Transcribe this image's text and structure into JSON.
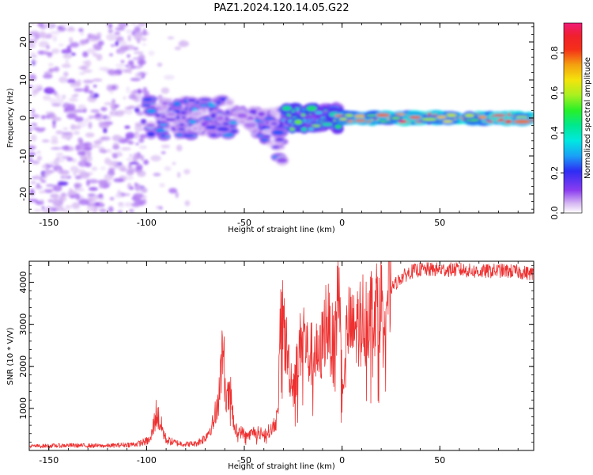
{
  "title": "PAZ1.2024.120.14.05.G22",
  "chart_data": [
    {
      "type": "heatmap",
      "xlabel": "Height of straight line (km)",
      "ylabel": "Frequency (Hz)",
      "xlim": [
        -160,
        98
      ],
      "ylim": [
        -25,
        25
      ],
      "xticks": [
        -150,
        -100,
        -50,
        0,
        50
      ],
      "yticks": [
        -20,
        -10,
        0,
        10,
        20
      ],
      "colorbar": {
        "label": "Normalized spectral amplitude",
        "range": [
          0,
          0.95
        ],
        "ticks": [
          0.0,
          0.2,
          0.4,
          0.6,
          0.8
        ],
        "colormap": "gist_ncar-like (white, violet, blue, cyan, green, yellow, orange, red, pink)"
      },
      "features": [
        {
          "x_range": [
            -160,
            -100
          ],
          "freq_range": [
            -25,
            25
          ],
          "amplitude": [
            0.02,
            0.1
          ],
          "note": "diffuse noise"
        },
        {
          "x_range": [
            -100,
            -55
          ],
          "freq_range": [
            -5,
            5
          ],
          "amplitude": [
            0.05,
            0.3
          ]
        },
        {
          "x_range": [
            -55,
            -30
          ],
          "freq_range": [
            -15,
            4
          ],
          "amplitude": [
            0.05,
            0.3
          ]
        },
        {
          "x_range": [
            -30,
            0
          ],
          "freq_range": [
            -3,
            3
          ],
          "amplitude": [
            0.2,
            0.6
          ]
        },
        {
          "x_range": [
            0,
            98
          ],
          "freq_range": [
            -1,
            1
          ],
          "amplitude": [
            0.5,
            0.95
          ],
          "note": "narrow carrier line near 0 Hz"
        }
      ]
    },
    {
      "type": "line",
      "xlabel": "Height of straight line (km)",
      "ylabel": "SNR (10 * V/V)",
      "xlim": [
        -160,
        98
      ],
      "ylim": [
        0,
        4500
      ],
      "xticks": [
        -150,
        -100,
        -50,
        0,
        50
      ],
      "yticks": [
        1000,
        2000,
        3000,
        4000
      ],
      "color": "#ee3030",
      "x": [
        -160,
        -140,
        -120,
        -105,
        -98,
        -95,
        -90,
        -85,
        -80,
        -75,
        -70,
        -66,
        -63,
        -61,
        -59,
        -57,
        -55,
        -52,
        -48,
        -45,
        -40,
        -36,
        -33,
        -31,
        -29,
        -27,
        -25,
        -22,
        -20,
        -17,
        -14,
        -12,
        -10,
        -8,
        -6,
        -4,
        -3,
        -2,
        0,
        3,
        6,
        10,
        14,
        18,
        22,
        26,
        30,
        35,
        40,
        45,
        50,
        55,
        60,
        70,
        80,
        90,
        98
      ],
      "y": [
        100,
        120,
        110,
        150,
        250,
        900,
        250,
        180,
        150,
        160,
        300,
        650,
        1300,
        2500,
        1200,
        1300,
        500,
        450,
        350,
        450,
        400,
        500,
        800,
        3500,
        2600,
        2000,
        1500,
        2300,
        2900,
        2200,
        2400,
        2100,
        2600,
        3200,
        2700,
        2500,
        2800,
        4300,
        1600,
        3000,
        2800,
        3200,
        3300,
        3500,
        3700,
        3900,
        4100,
        4250,
        4300,
        4300,
        4300,
        4300,
        4300,
        4250,
        4280,
        4250,
        4200
      ]
    }
  ]
}
